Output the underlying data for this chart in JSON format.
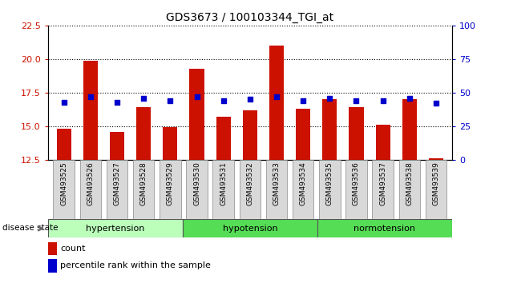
{
  "title": "GDS3673 / 100103344_TGI_at",
  "samples": [
    "GSM493525",
    "GSM493526",
    "GSM493527",
    "GSM493528",
    "GSM493529",
    "GSM493530",
    "GSM493531",
    "GSM493532",
    "GSM493533",
    "GSM493534",
    "GSM493535",
    "GSM493536",
    "GSM493537",
    "GSM493538",
    "GSM493539"
  ],
  "bar_values": [
    14.8,
    19.9,
    14.6,
    16.4,
    14.95,
    19.3,
    15.7,
    16.2,
    21.0,
    16.3,
    17.0,
    16.4,
    15.1,
    17.0,
    12.6
  ],
  "percentile_values": [
    43,
    47,
    43,
    46,
    44,
    47,
    44,
    45,
    47,
    44,
    46,
    44,
    44,
    46,
    42
  ],
  "ylim_left": [
    12.5,
    22.5
  ],
  "ylim_right": [
    0,
    100
  ],
  "yticks_left": [
    12.5,
    15.0,
    17.5,
    20.0,
    22.5
  ],
  "yticks_right": [
    0,
    25,
    50,
    75,
    100
  ],
  "bar_color": "#cc1100",
  "percentile_color": "#0000cc",
  "bg_color": "#ffffff",
  "grid_color": "#000000",
  "group_labels": [
    "hypertension",
    "hypotension",
    "normotension"
  ],
  "group_starts": [
    0,
    5,
    10
  ],
  "group_ends": [
    5,
    10,
    15
  ],
  "group_colors": [
    "#bbffbb",
    "#55dd55",
    "#55dd55"
  ],
  "disease_state_label": "disease state",
  "legend_count_label": "count",
  "legend_percentile_label": "percentile rank within the sample"
}
